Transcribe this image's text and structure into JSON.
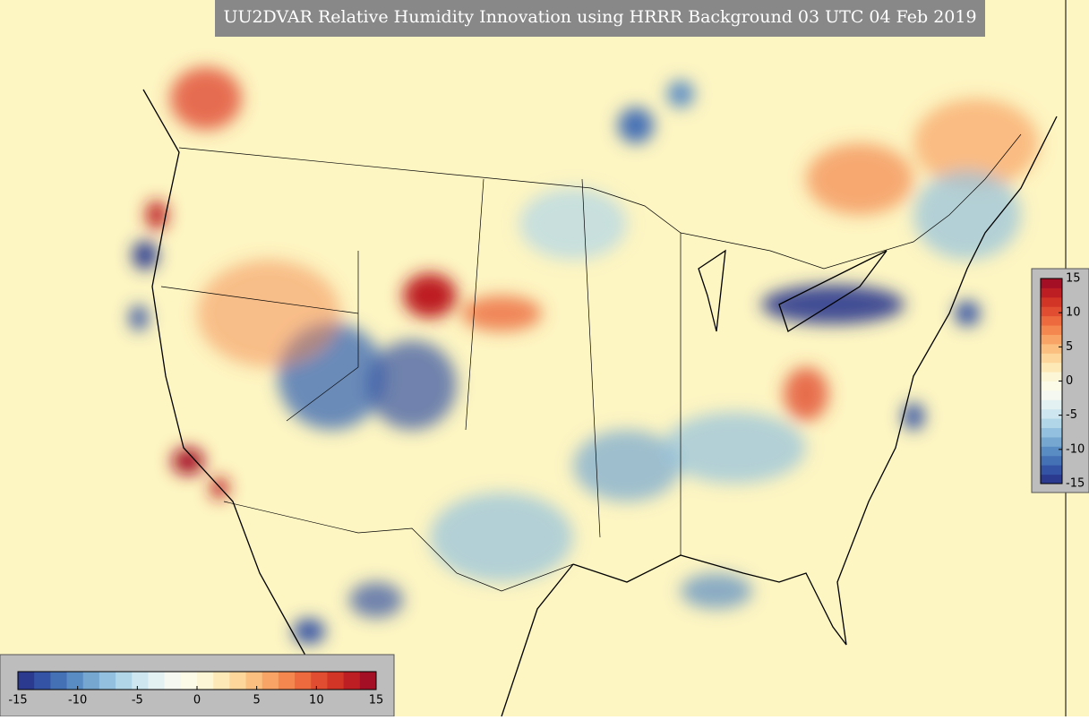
{
  "title": "UU2DVAR Relative Humidity Innovation using HRRR Background 03 UTC 04 Feb 2019",
  "colorbar": {
    "range": [
      -15,
      15
    ],
    "ticks": [
      -15,
      -10,
      -5,
      0,
      5,
      10,
      15
    ],
    "colors": [
      "#2b3a8f",
      "#3553a4",
      "#4470b5",
      "#5a8cc4",
      "#75a7d1",
      "#93c0de",
      "#b1d6e8",
      "#cde6ef",
      "#e4f1f2",
      "#f4f8f0",
      "#fbfbe8",
      "#fdf6d6",
      "#fde9b8",
      "#fcd69a",
      "#fbbf7f",
      "#f8a466",
      "#f3874f",
      "#ec6a3e",
      "#e14d31",
      "#d23426",
      "#bd1e23",
      "#a50f26"
    ]
  }
}
